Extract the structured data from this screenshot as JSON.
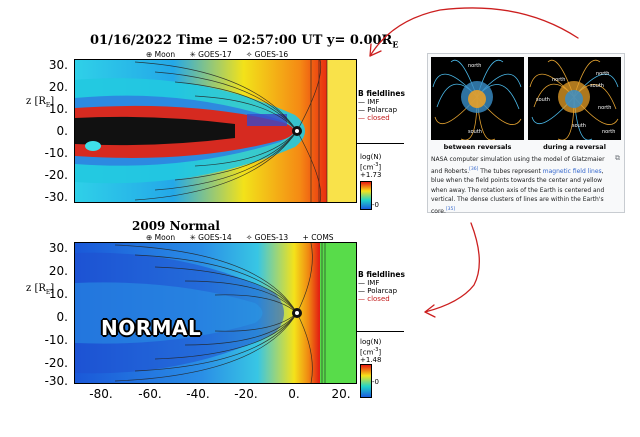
{
  "top_panel": {
    "title": "01/16/2022 Time = 02:57:00 UT y= 0.00R",
    "title_sub": "E",
    "satellites": [
      "⊕ Moon",
      "✳ GOES-17",
      "✧ GOES-16"
    ],
    "y_label": "z [R",
    "y_label_sub": "E",
    "y_ticks": [
      "30.",
      "20.",
      "10.",
      "0.",
      "-10.",
      "-20.",
      "-30."
    ],
    "legend": {
      "header": "B fieldlines",
      "items": [
        "IMF",
        "Polarcap",
        "closed"
      ]
    },
    "colorbar": {
      "title": "log(N)",
      "unit": "[cm",
      "unit_exp": "-3",
      "max": "+1.73",
      "min": "-0"
    }
  },
  "bottom_panel": {
    "title": "2009 Normal",
    "satellites": [
      "⊕ Moon",
      "✳ GOES-14",
      "✧ GOES-13",
      "+ COMS"
    ],
    "y_label": "z [R",
    "y_label_sub": "E",
    "y_ticks": [
      "30.",
      "20.",
      "10.",
      "0.",
      "-10.",
      "-20.",
      "-30."
    ],
    "x_ticks": [
      "-80.",
      "-60.",
      "-40.",
      "-20.",
      "0.",
      "20."
    ],
    "overlay_text": "NORMAL",
    "legend": {
      "header": "B fieldlines",
      "items": [
        "IMF",
        "Polarcap",
        "closed"
      ]
    },
    "colorbar": {
      "title": "log(N)",
      "unit": "[cm",
      "unit_exp": "-3",
      "max": "+1.48",
      "min": "-0"
    }
  },
  "wiki_figure": {
    "left_caption": "between reversals",
    "right_caption": "during a reversal",
    "left_labels": [
      "north",
      "south"
    ],
    "right_labels": [
      "north",
      "south",
      "north",
      "south",
      "north",
      "south",
      "north"
    ],
    "caption_parts": [
      "NASA computer simulation using the model of Glatzmaier and Roberts.",
      "[36]",
      " The tubes represent ",
      "magnetic field lines",
      ", blue when the field points towards the center and yellow when away. The rotation axis of the Earth is centered and vertical. The dense clusters of lines are within the Earth's core.",
      "[35]"
    ],
    "enlarge_icon": "enlarge-icon"
  },
  "colors": {
    "arrow": "#cc1f1f",
    "link": "#3366cc"
  }
}
